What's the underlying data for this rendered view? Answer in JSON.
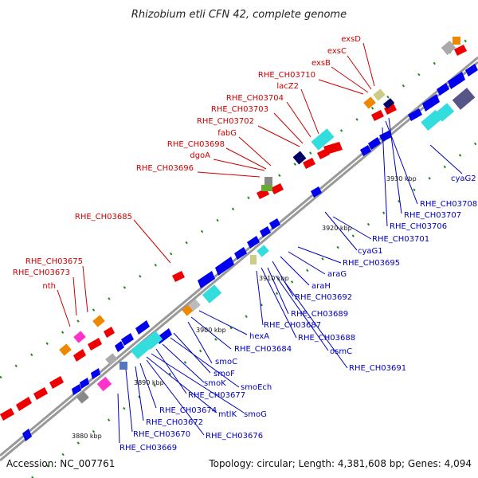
{
  "title": "Rhizobium etli CFN 42, complete genome",
  "accession": "Accession: NC_007761",
  "summary": "Topology: circular; Length: 4,381,608 bp; Genes: 4,094",
  "colors": {
    "forward": "#ee0000",
    "reverse": "#0000ee",
    "forward_label": "#cc0000",
    "reverse_label": "#0000bb",
    "backbone": "#999999",
    "orange": "#ee8800",
    "cyan": "#33dddd",
    "magenta": "#ff33cc",
    "dark_blue": "#000066",
    "slate": "#555588",
    "olive": "#cccc88",
    "green": "#66aa33",
    "dashed_marks": "#228822"
  },
  "ticks": [
    "3880 kbp",
    "3890 kbp",
    "3900 kbp",
    "3910 kbp",
    "3920 kbp",
    "3930 kbp"
  ],
  "labels_forward": [
    "exsD",
    "exsC",
    "exsB",
    "RHE_CH03710",
    "lacZ2",
    "RHE_CH03704",
    "RHE_CH03703",
    "RHE_CH03702",
    "fabG",
    "RHE_CH03698",
    "dgoA",
    "RHE_CH03696",
    "RHE_CH03685",
    "RHE_CH03675",
    "RHE_CH03673",
    "nth"
  ],
  "labels_reverse": [
    "cyaG2",
    "RHE_CH03708",
    "RHE_CH03707",
    "RHE_CH03706",
    "RHE_CH03701",
    "cyaG1",
    "RHE_CH03695",
    "araG",
    "araH",
    "RHE_CH03692",
    "RHE_CH03689",
    "RHE_CH03687",
    "RHE_CH03688",
    "osmC",
    "RHE_CH03691",
    "hexA",
    "RHE_CH03684",
    "smoC",
    "smoF",
    "smoEch",
    "smoK",
    "RHE_CH03677",
    "smoG",
    "mtlK",
    "RHE_CH03674",
    "RHE_CH03672",
    "RHE_CH03676",
    "RHE_CH03670",
    "RHE_CH03669"
  ]
}
